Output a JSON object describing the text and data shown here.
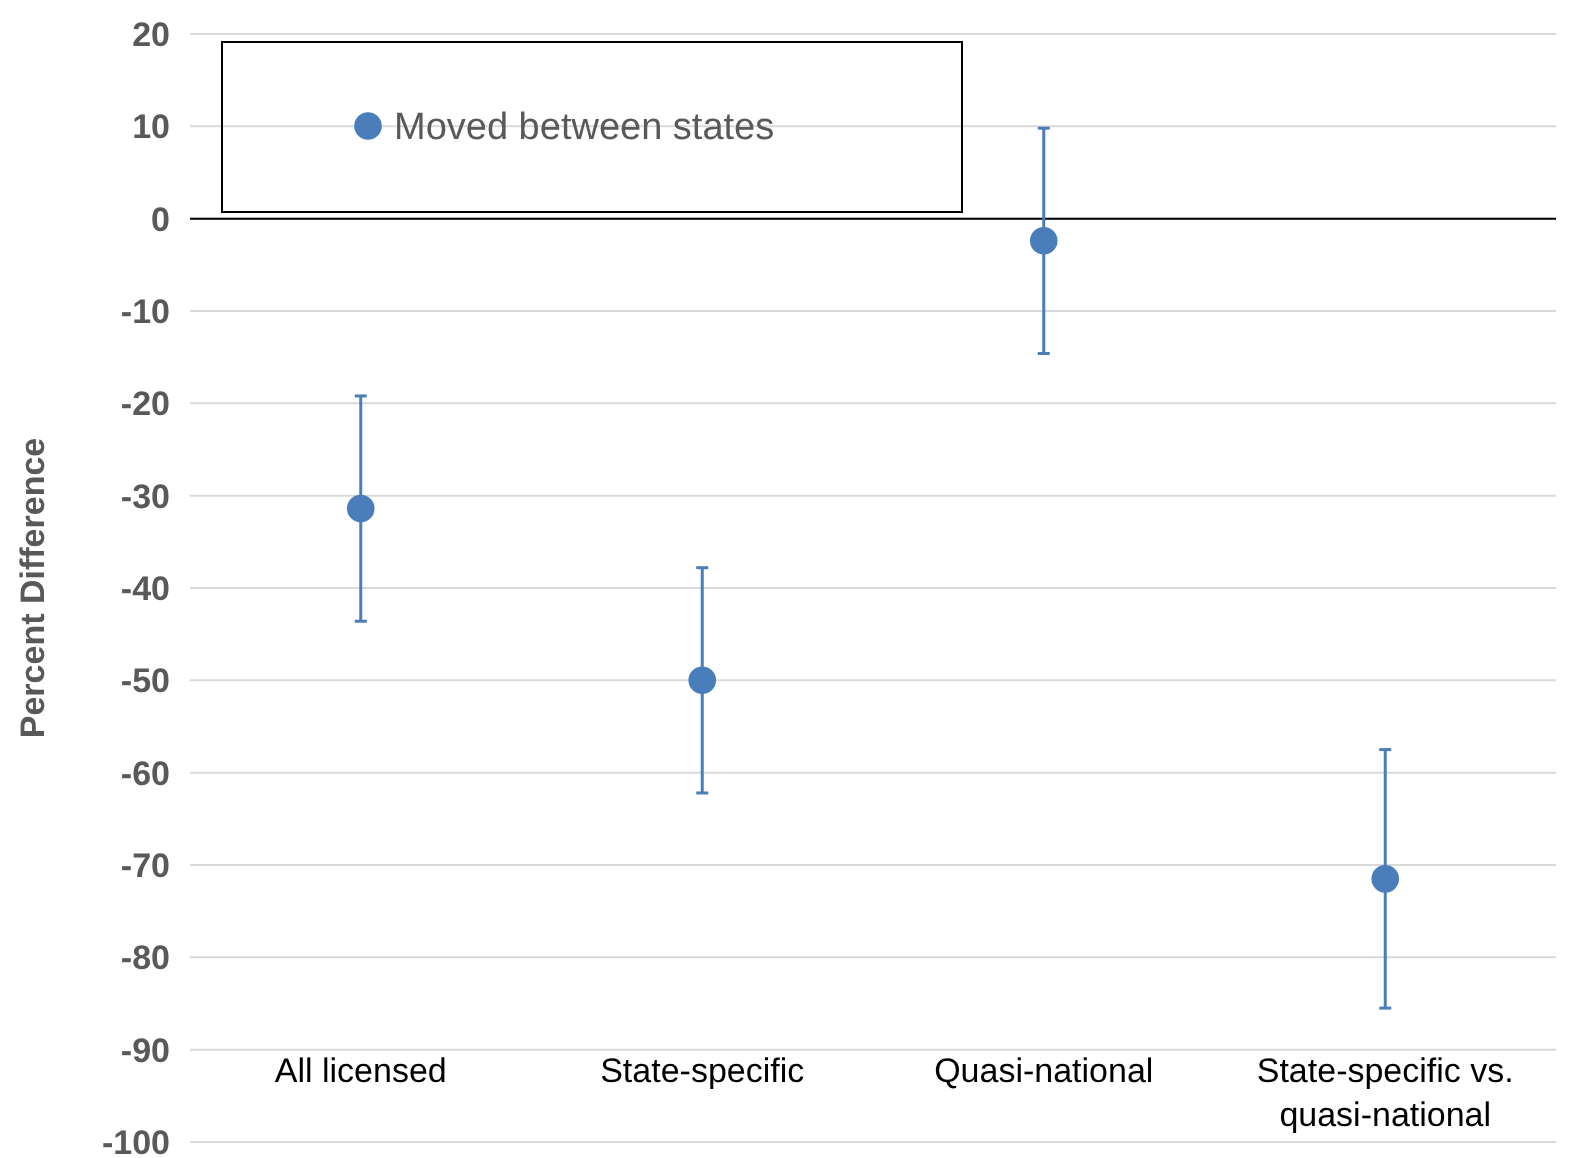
{
  "chart_data": {
    "type": "scatter",
    "ylabel": "Percent Difference",
    "categories": [
      "All licensed",
      "State-specific",
      "Quasi-national",
      "State-specific vs. quasi-national"
    ],
    "series": [
      {
        "name": "Moved between states",
        "color": "#4a7ebb",
        "values": [
          -31.4,
          -50,
          -2.4,
          -71.5
        ],
        "errors": [
          12.2,
          12.2,
          12.2,
          14
        ]
      }
    ],
    "ylim": [
      -100,
      20
    ],
    "yticks": [
      -100,
      -90,
      -80,
      -70,
      -60,
      -50,
      -40,
      -30,
      -20,
      -10,
      0,
      10,
      20
    ],
    "grid": "y",
    "legend": "top left",
    "marker": "circle"
  }
}
